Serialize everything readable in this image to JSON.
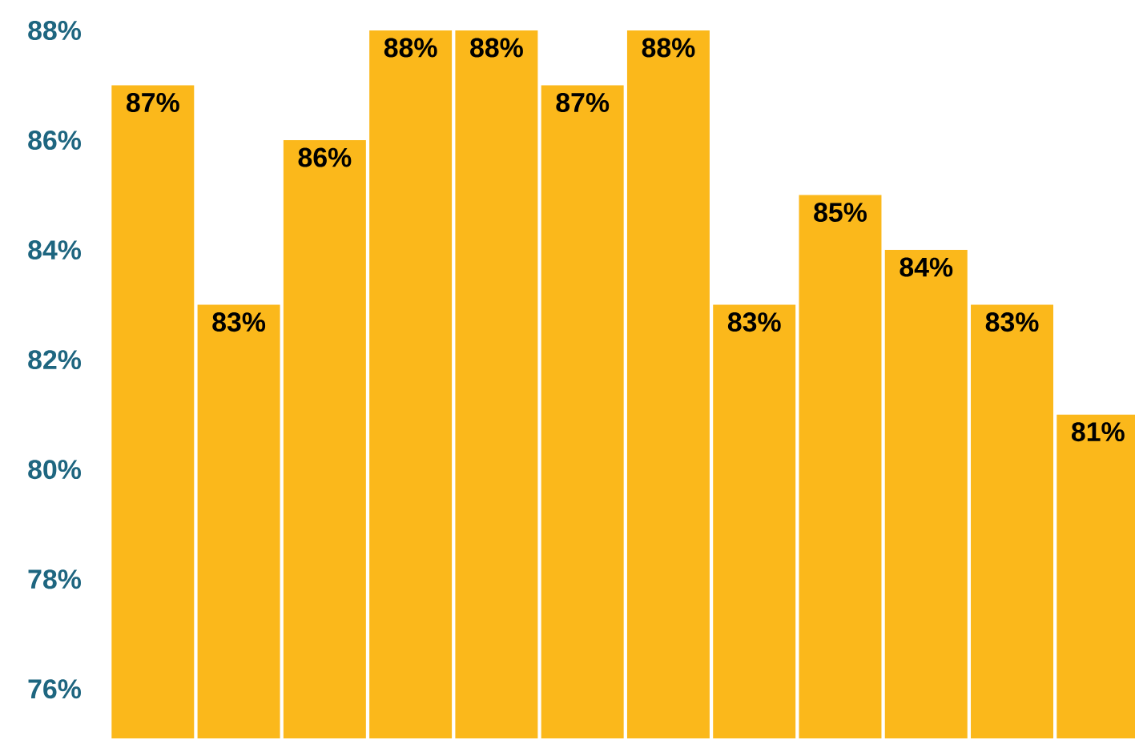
{
  "chart_data": {
    "type": "bar",
    "categories": [
      null,
      null,
      null,
      null,
      null,
      null,
      null,
      null,
      null,
      null,
      null,
      null
    ],
    "values": [
      87,
      83,
      86,
      88,
      88,
      87,
      88,
      83,
      85,
      84,
      83,
      81
    ],
    "value_labels": [
      "87%",
      "83%",
      "86%",
      "88%",
      "88%",
      "87%",
      "88%",
      "83%",
      "85%",
      "84%",
      "83%",
      "81%"
    ],
    "color": "#fbb81b",
    "ylim": [
      75.1,
      88
    ],
    "yticks": [
      {
        "value": 76,
        "label": "76%"
      },
      {
        "value": 78,
        "label": "78%"
      },
      {
        "value": 80,
        "label": "80%"
      },
      {
        "value": 82,
        "label": "82%"
      },
      {
        "value": 84,
        "label": "84%"
      },
      {
        "value": 86,
        "label": "86%"
      },
      {
        "value": 88,
        "label": "88%"
      }
    ],
    "grid": false
  }
}
